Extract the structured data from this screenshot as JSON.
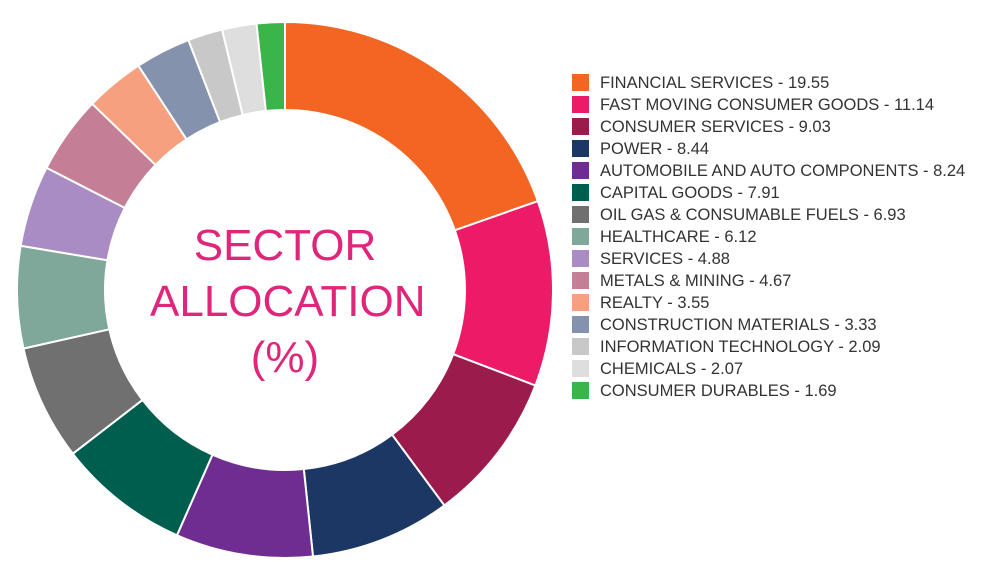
{
  "chart_data": {
    "type": "donut",
    "title": "SECTOR ALLOCATION (%)",
    "categories": [
      "FINANCIAL SERVICES - 19.55",
      "FAST MOVING CONSUMER GOODS - 11.14",
      "CONSUMER SERVICES - 9.03",
      "POWER - 8.44",
      "AUTOMOBILE AND AUTO COMPONENTS - 8.24",
      "CAPITAL GOODS - 7.91",
      "OIL GAS & CONSUMABLE FUELS - 6.93",
      "HEALTHCARE - 6.12",
      "SERVICES - 4.88",
      "METALS & MINING - 4.67",
      "REALTY - 3.55",
      "CONSTRUCTION MATERIALS - 3.33",
      "INFORMATION TECHNOLOGY - 2.09",
      "CHEMICALS - 2.07",
      "CONSUMER DURABLES - 1.69"
    ],
    "values": [
      19.55,
      11.14,
      9.03,
      8.44,
      8.24,
      7.91,
      6.93,
      6.12,
      4.88,
      4.67,
      3.55,
      3.33,
      2.09,
      2.07,
      1.69
    ],
    "colors": [
      "#f26522",
      "#ed1a67",
      "#9b1b4d",
      "#1d3764",
      "#6f2c91",
      "#005e4f",
      "#707070",
      "#7fa89a",
      "#a98cc3",
      "#c47f96",
      "#f7a07f",
      "#8592ad",
      "#c8c8c8",
      "#dedede",
      "#3ab54a"
    ]
  }
}
